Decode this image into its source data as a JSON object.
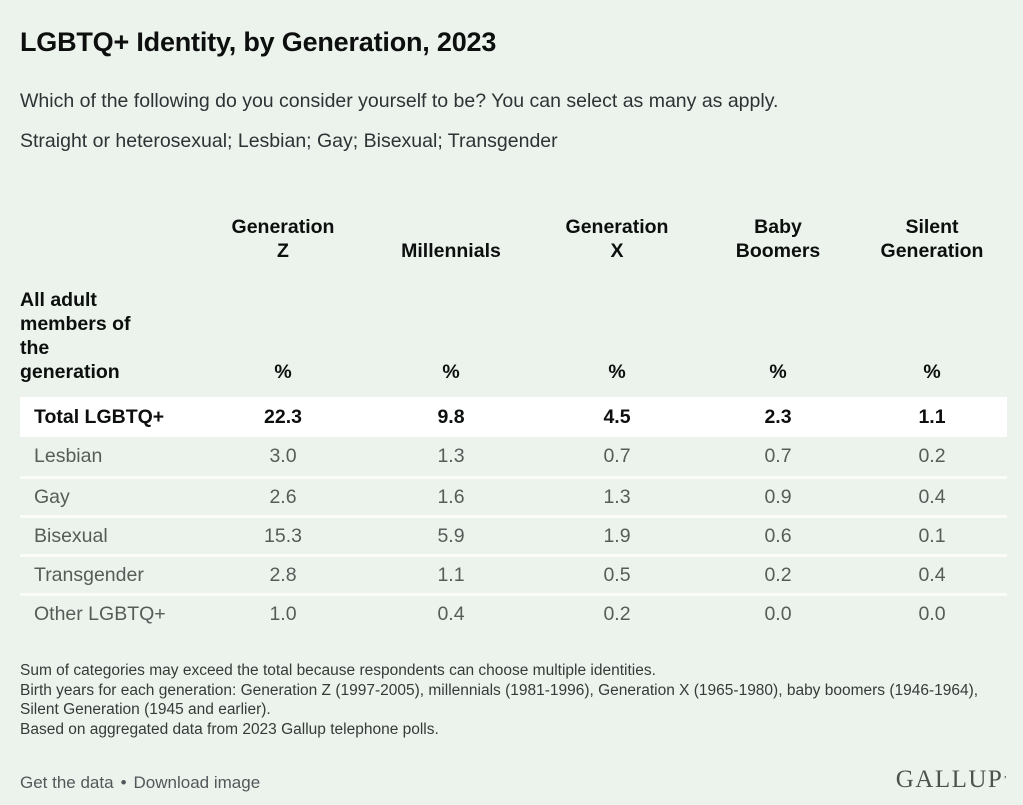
{
  "colors": {
    "background": "#ecf3ed",
    "highlight_row": "#ffffff",
    "text_dark": "#0d0f0e",
    "text_gray": "#585c59",
    "footnote_text": "#363a38",
    "footer_link": "#53575a",
    "brand_text": "#4e524f"
  },
  "header": {
    "title": "LGBTQ+ Identity, by Generation, 2023",
    "subtitle_line1": "Which of the following do you consider yourself to be? You can select as many as apply.",
    "subtitle_line2": "Straight or heterosexual; Lesbian; Gay; Bisexual; Transgender"
  },
  "table": {
    "stub_header": "All adult\nmembers of\nthe\ngeneration",
    "unit_symbol": "%",
    "columns": [
      {
        "label": "Generation\nZ"
      },
      {
        "label": "Millennials"
      },
      {
        "label": "Generation\nX"
      },
      {
        "label": "Baby\nBoomers"
      },
      {
        "label": "Silent\nGeneration"
      }
    ],
    "rows": [
      {
        "label": "Total LGBTQ+",
        "values": [
          "22.3",
          "9.8",
          "4.5",
          "2.3",
          "1.1"
        ],
        "emphasis": true
      },
      {
        "label": "Lesbian",
        "values": [
          "3.0",
          "1.3",
          "0.7",
          "0.7",
          "0.2"
        ],
        "emphasis": false
      },
      {
        "label": "Gay",
        "values": [
          "2.6",
          "1.6",
          "1.3",
          "0.9",
          "0.4"
        ],
        "emphasis": false
      },
      {
        "label": "Bisexual",
        "values": [
          "15.3",
          "5.9",
          "1.9",
          "0.6",
          "0.1"
        ],
        "emphasis": false
      },
      {
        "label": "Transgender",
        "values": [
          "2.8",
          "1.1",
          "0.5",
          "0.2",
          "0.4"
        ],
        "emphasis": false
      },
      {
        "label": "Other LGBTQ+",
        "values": [
          "1.0",
          "0.4",
          "0.2",
          "0.0",
          "0.0"
        ],
        "emphasis": false
      }
    ]
  },
  "footnotes": [
    "Sum of categories may exceed the total because respondents can choose multiple identities.",
    "Birth years for each generation: Generation Z (1997-2005), millennials (1981-1996), Generation X (1965-1980), baby boomers (1946-1964), Silent Generation (1945 and earlier).",
    "Based on aggregated data from 2023 Gallup telephone polls."
  ],
  "footer": {
    "get_data_label": "Get the data",
    "separator": "•",
    "download_label": "Download image",
    "brand": "GALLUP",
    "brand_mark": "’"
  },
  "chart_data": {
    "type": "table",
    "title": "LGBTQ+ Identity, by Generation, 2023",
    "subtitle": "Which of the following do you consider yourself to be? You can select as many as apply. Straight or heterosexual; Lesbian; Gay; Bisexual; Transgender",
    "unit": "%",
    "categories": [
      "Generation Z",
      "Millennials",
      "Generation X",
      "Baby Boomers",
      "Silent Generation"
    ],
    "series": [
      {
        "name": "Total LGBTQ+",
        "values": [
          22.3,
          9.8,
          4.5,
          2.3,
          1.1
        ]
      },
      {
        "name": "Lesbian",
        "values": [
          3.0,
          1.3,
          0.7,
          0.7,
          0.2
        ]
      },
      {
        "name": "Gay",
        "values": [
          2.6,
          1.6,
          1.3,
          0.9,
          0.4
        ]
      },
      {
        "name": "Bisexual",
        "values": [
          15.3,
          5.9,
          1.9,
          0.6,
          0.1
        ]
      },
      {
        "name": "Transgender",
        "values": [
          2.8,
          1.1,
          0.5,
          0.2,
          0.4
        ]
      },
      {
        "name": "Other LGBTQ+",
        "values": [
          1.0,
          0.4,
          0.2,
          0.0,
          0.0
        ]
      }
    ],
    "notes": [
      "Sum of categories may exceed the total because respondents can choose multiple identities.",
      "Birth years for each generation: Generation Z (1997-2005), millennials (1981-1996), Generation X (1965-1980), baby boomers (1946-1964), Silent Generation (1945 and earlier).",
      "Based on aggregated data from 2023 Gallup telephone polls."
    ],
    "source": "GALLUP"
  }
}
